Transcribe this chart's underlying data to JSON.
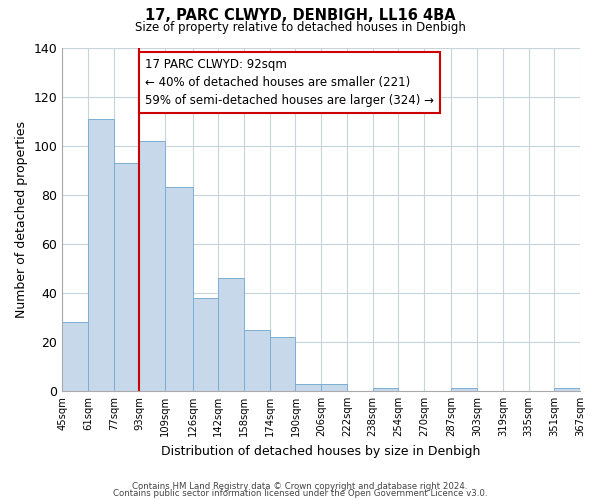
{
  "title": "17, PARC CLWYD, DENBIGH, LL16 4BA",
  "subtitle": "Size of property relative to detached houses in Denbigh",
  "xlabel": "Distribution of detached houses by size in Denbigh",
  "ylabel": "Number of detached properties",
  "bar_edges": [
    45,
    61,
    77,
    93,
    109,
    126,
    142,
    158,
    174,
    190,
    206,
    222,
    238,
    254,
    270,
    287,
    303,
    319,
    335,
    351,
    367
  ],
  "bar_heights": [
    28,
    111,
    93,
    102,
    83,
    38,
    46,
    25,
    22,
    3,
    3,
    0,
    1,
    0,
    0,
    1,
    0,
    0,
    0,
    1
  ],
  "bar_color": "#c8d8eb",
  "bar_edge_color": "#7bafd4",
  "vline_x": 93,
  "vline_color": "#cc0000",
  "annotation_lines": [
    "17 PARC CLWYD: 92sqm",
    "← 40% of detached houses are smaller (221)",
    "59% of semi-detached houses are larger (324) →"
  ],
  "ylim": [
    0,
    140
  ],
  "yticks": [
    0,
    20,
    40,
    60,
    80,
    100,
    120,
    140
  ],
  "tick_labels": [
    "45sqm",
    "61sqm",
    "77sqm",
    "93sqm",
    "109sqm",
    "126sqm",
    "142sqm",
    "158sqm",
    "174sqm",
    "190sqm",
    "206sqm",
    "222sqm",
    "238sqm",
    "254sqm",
    "270sqm",
    "287sqm",
    "303sqm",
    "319sqm",
    "335sqm",
    "351sqm",
    "367sqm"
  ],
  "footer_line1": "Contains HM Land Registry data © Crown copyright and database right 2024.",
  "footer_line2": "Contains public sector information licensed under the Open Government Licence v3.0.",
  "background_color": "#ffffff",
  "grid_color": "#c8d4dc"
}
